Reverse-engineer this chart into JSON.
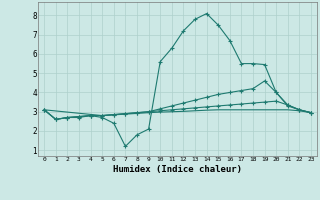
{
  "xlabel": "Humidex (Indice chaleur)",
  "bg_color": "#cce8e5",
  "grid_color": "#aed0cc",
  "line_color": "#1e7a70",
  "xlim": [
    -0.5,
    23.5
  ],
  "ylim": [
    0.7,
    8.7
  ],
  "yticks": [
    1,
    2,
    3,
    4,
    5,
    6,
    7,
    8
  ],
  "xticks": [
    0,
    1,
    2,
    3,
    4,
    5,
    6,
    7,
    8,
    9,
    10,
    11,
    12,
    13,
    14,
    15,
    16,
    17,
    18,
    19,
    20,
    21,
    22,
    23
  ],
  "line1_x": [
    0,
    1,
    2,
    3,
    4,
    5,
    6,
    7,
    8,
    9,
    10,
    11,
    12,
    13,
    14,
    15,
    16,
    17,
    18,
    19,
    20,
    21,
    22,
    23
  ],
  "line1_y": [
    3.1,
    2.6,
    2.7,
    2.7,
    2.8,
    2.7,
    2.4,
    1.2,
    1.8,
    2.1,
    5.6,
    6.3,
    7.2,
    7.8,
    8.1,
    7.5,
    6.7,
    5.5,
    5.5,
    5.45,
    4.0,
    3.3,
    3.1,
    2.95
  ],
  "line2_x": [
    0,
    1,
    2,
    3,
    4,
    5,
    6,
    7,
    8,
    9,
    10,
    11,
    12,
    13,
    14,
    15,
    16,
    17,
    18,
    19,
    20,
    21,
    22,
    23
  ],
  "line2_y": [
    3.1,
    2.6,
    2.7,
    2.75,
    2.8,
    2.8,
    2.85,
    2.9,
    2.95,
    3.0,
    3.15,
    3.3,
    3.45,
    3.6,
    3.75,
    3.9,
    4.0,
    4.1,
    4.2,
    4.6,
    4.0,
    3.35,
    3.1,
    2.95
  ],
  "line3_x": [
    0,
    1,
    2,
    3,
    4,
    5,
    6,
    7,
    8,
    9,
    10,
    11,
    12,
    13,
    14,
    15,
    16,
    17,
    18,
    19,
    20,
    21,
    22,
    23
  ],
  "line3_y": [
    3.1,
    2.6,
    2.7,
    2.75,
    2.8,
    2.8,
    2.85,
    2.9,
    2.95,
    3.0,
    3.05,
    3.1,
    3.15,
    3.2,
    3.25,
    3.3,
    3.35,
    3.4,
    3.45,
    3.5,
    3.55,
    3.35,
    3.1,
    2.95
  ],
  "line4_x": [
    0,
    5,
    9,
    10,
    11,
    12,
    13,
    14,
    15,
    16,
    17,
    18,
    19,
    20,
    21,
    22,
    23
  ],
  "line4_y": [
    3.1,
    2.8,
    2.95,
    2.98,
    3.0,
    3.02,
    3.05,
    3.08,
    3.1,
    3.1,
    3.1,
    3.1,
    3.1,
    3.1,
    3.1,
    3.05,
    2.95
  ]
}
